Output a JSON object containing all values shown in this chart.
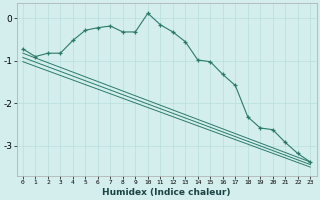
{
  "xlabel": "Humidex (Indice chaleur)",
  "bg_color": "#d4eeee",
  "line_color": "#2a7a6a",
  "xlim": [
    -0.5,
    23.5
  ],
  "ylim": [
    -3.7,
    0.35
  ],
  "yticks": [
    0,
    -1,
    -2,
    -3
  ],
  "xticks": [
    0,
    1,
    2,
    3,
    4,
    5,
    6,
    7,
    8,
    9,
    10,
    11,
    12,
    13,
    14,
    15,
    16,
    17,
    18,
    19,
    20,
    21,
    22,
    23
  ],
  "main_x": [
    0,
    1,
    2,
    3,
    4,
    5,
    6,
    7,
    8,
    9,
    10,
    11,
    12,
    13,
    14,
    15,
    16,
    17,
    18,
    19,
    20,
    21,
    22,
    23
  ],
  "main_y": [
    -0.72,
    -0.9,
    -0.82,
    -0.82,
    -0.52,
    -0.28,
    -0.22,
    -0.18,
    -0.32,
    -0.32,
    0.12,
    -0.15,
    -0.32,
    -0.55,
    -0.98,
    -1.02,
    -1.32,
    -1.58,
    -2.32,
    -2.58,
    -2.62,
    -2.92,
    -3.18,
    -3.38
  ],
  "line2_x": [
    0,
    23
  ],
  "line2_y": [
    -0.82,
    -3.38
  ],
  "line3_x": [
    0,
    23
  ],
  "line3_y": [
    -0.92,
    -3.44
  ],
  "line4_x": [
    0,
    23
  ],
  "line4_y": [
    -1.02,
    -3.5
  ],
  "grid_color": "#b8dede",
  "spine_color": "#aaaaaa"
}
